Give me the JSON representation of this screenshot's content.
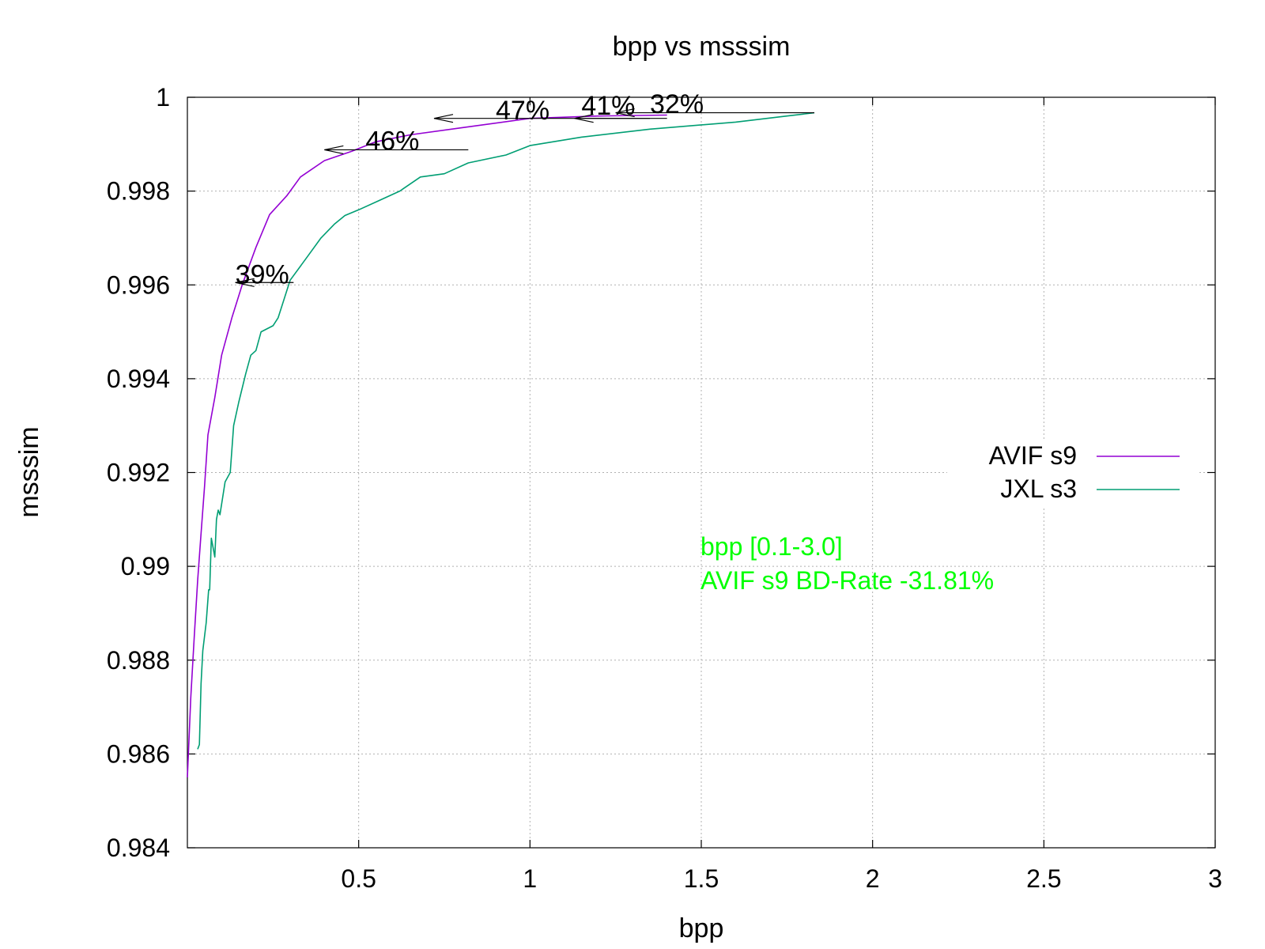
{
  "chart_data": {
    "type": "line",
    "title": "bpp vs msssim",
    "xlabel": "bpp",
    "ylabel": "msssim",
    "xlim": [
      0.0,
      3.0
    ],
    "ylim": [
      0.984,
      1.0
    ],
    "x_ticks": [
      {
        "value": 0.5,
        "label": "0.5"
      },
      {
        "value": 1.0,
        "label": "1"
      },
      {
        "value": 1.5,
        "label": "1.5"
      },
      {
        "value": 2.0,
        "label": "2"
      },
      {
        "value": 2.5,
        "label": "2.5"
      },
      {
        "value": 3.0,
        "label": "3"
      }
    ],
    "y_ticks": [
      {
        "value": 0.984,
        "label": "0.984"
      },
      {
        "value": 0.986,
        "label": "0.986"
      },
      {
        "value": 0.988,
        "label": "0.988"
      },
      {
        "value": 0.99,
        "label": "0.99"
      },
      {
        "value": 0.992,
        "label": "0.992"
      },
      {
        "value": 0.994,
        "label": "0.994"
      },
      {
        "value": 0.996,
        "label": "0.996"
      },
      {
        "value": 0.998,
        "label": "0.998"
      },
      {
        "value": 1.0,
        "label": "1"
      }
    ],
    "grid": true,
    "legend_position": "right",
    "series": [
      {
        "name": "AVIF s9",
        "color": "#9400d3",
        "points": [
          [
            0.0,
            0.9855
          ],
          [
            0.01,
            0.9872
          ],
          [
            0.02,
            0.9885
          ],
          [
            0.03,
            0.9897
          ],
          [
            0.04,
            0.9907
          ],
          [
            0.05,
            0.9917
          ],
          [
            0.06,
            0.9928
          ],
          [
            0.08,
            0.9936
          ],
          [
            0.1,
            0.9945
          ],
          [
            0.13,
            0.9953
          ],
          [
            0.16,
            0.996
          ],
          [
            0.2,
            0.9968
          ],
          [
            0.24,
            0.9975
          ],
          [
            0.29,
            0.9979
          ],
          [
            0.33,
            0.9983
          ],
          [
            0.4,
            0.99865
          ],
          [
            0.48,
            0.99885
          ],
          [
            0.55,
            0.99905
          ],
          [
            0.65,
            0.9992
          ],
          [
            0.8,
            0.99935
          ],
          [
            1.0,
            0.99955
          ],
          [
            1.2,
            0.9996
          ],
          [
            1.4,
            0.99962
          ]
        ]
      },
      {
        "name": "JXL s3",
        "color": "#009e73",
        "points": [
          [
            0.03,
            0.9861
          ],
          [
            0.035,
            0.9862
          ],
          [
            0.04,
            0.9875
          ],
          [
            0.045,
            0.9882
          ],
          [
            0.055,
            0.9888
          ],
          [
            0.062,
            0.9895
          ],
          [
            0.065,
            0.9895
          ],
          [
            0.07,
            0.9906
          ],
          [
            0.08,
            0.9902
          ],
          [
            0.085,
            0.991
          ],
          [
            0.09,
            0.9912
          ],
          [
            0.095,
            0.9911
          ],
          [
            0.11,
            0.9918
          ],
          [
            0.125,
            0.992
          ],
          [
            0.135,
            0.993
          ],
          [
            0.15,
            0.9935
          ],
          [
            0.17,
            0.9941
          ],
          [
            0.185,
            0.9945
          ],
          [
            0.2,
            0.9946
          ],
          [
            0.215,
            0.995
          ],
          [
            0.25,
            0.99513
          ],
          [
            0.265,
            0.9953
          ],
          [
            0.3,
            0.9961
          ],
          [
            0.35,
            0.9966
          ],
          [
            0.39,
            0.997
          ],
          [
            0.43,
            0.9973
          ],
          [
            0.46,
            0.99748
          ],
          [
            0.5,
            0.9976
          ],
          [
            0.56,
            0.9978
          ],
          [
            0.62,
            0.998
          ],
          [
            0.68,
            0.9983
          ],
          [
            0.75,
            0.99837
          ],
          [
            0.82,
            0.9986
          ],
          [
            0.93,
            0.99877
          ],
          [
            1.0,
            0.99897
          ],
          [
            1.15,
            0.99915
          ],
          [
            1.35,
            0.99932
          ],
          [
            1.6,
            0.99947
          ],
          [
            1.75,
            0.9996
          ],
          [
            1.83,
            0.99967
          ]
        ]
      }
    ],
    "annotations": [
      {
        "label": "39%",
        "arrow_from": [
          0.31,
          0.99605
        ],
        "arrow_to": [
          0.14,
          0.99605
        ],
        "label_at": [
          0.14,
          0.9962
        ]
      },
      {
        "label": "46%",
        "arrow_from": [
          0.82,
          0.99888
        ],
        "arrow_to": [
          0.4,
          0.99888
        ],
        "label_at": [
          0.52,
          0.99905
        ]
      },
      {
        "label": "47%",
        "arrow_from": [
          1.35,
          0.99955
        ],
        "arrow_to": [
          0.72,
          0.99955
        ],
        "label_at": [
          0.9,
          0.9997
        ]
      },
      {
        "label": "41%",
        "arrow_from": [
          1.4,
          0.99955
        ],
        "arrow_to": [
          1.13,
          0.99955
        ],
        "label_at": [
          1.15,
          0.9998
        ]
      },
      {
        "label": "32%",
        "arrow_from": [
          1.83,
          0.99967
        ],
        "arrow_to": [
          1.25,
          0.99967
        ],
        "label_at": [
          1.35,
          0.99983
        ]
      }
    ],
    "bd_rate": {
      "line1": "bpp [0.1-3.0]",
      "line2": "AVIF s9 BD-Rate -31.81%",
      "color": "#00ff00"
    }
  }
}
